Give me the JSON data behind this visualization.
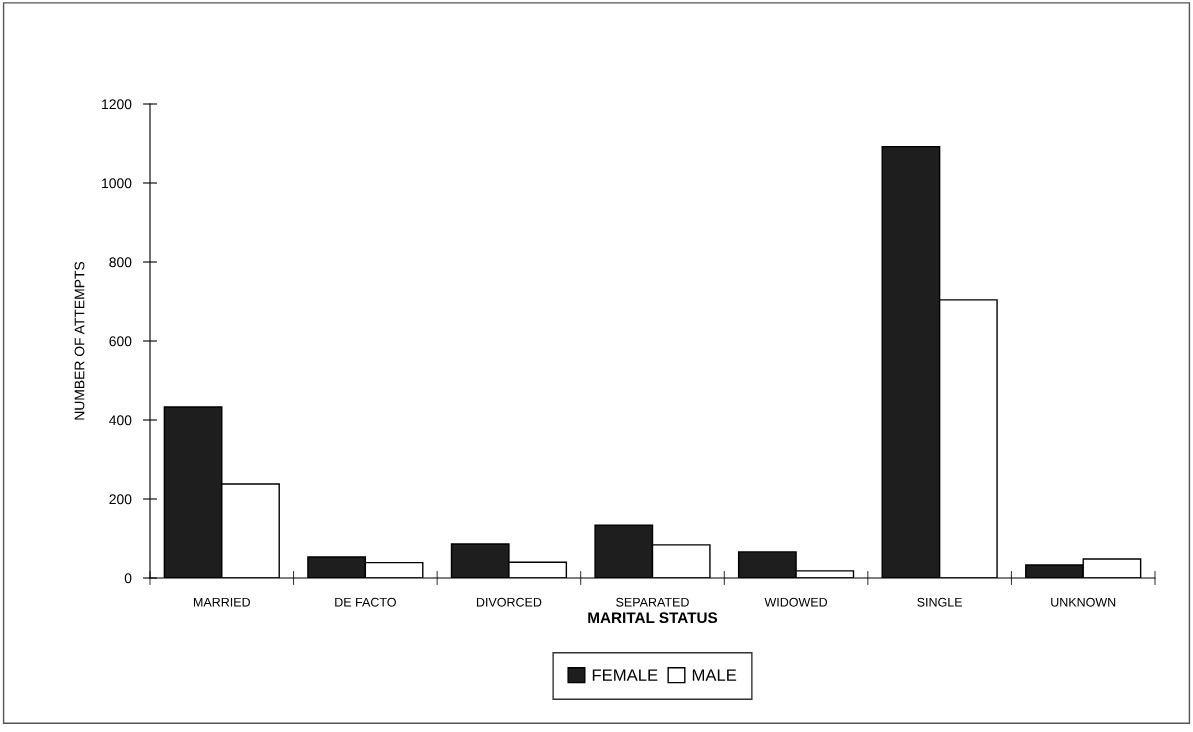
{
  "chart_data": {
    "type": "bar",
    "xlabel": "MARITAL STATUS",
    "ylabel": "NUMBER OF ATTEMPTS",
    "categories": [
      "MARRIED",
      "DE FACTO",
      "DIVORCED",
      "SEPARATED",
      "WIDOWED",
      "SINGLE",
      "UNKNOWN"
    ],
    "series": [
      {
        "name": "FEMALE",
        "color": "#1e1e1e",
        "values": [
          433,
          53,
          86,
          134,
          66,
          1092,
          33
        ]
      },
      {
        "name": "MALE",
        "color": "#ffffff",
        "values": [
          238,
          39,
          40,
          84,
          18,
          704,
          48
        ]
      }
    ],
    "ylim": [
      0,
      1200
    ],
    "yticks": [
      0,
      200,
      400,
      600,
      800,
      1000,
      1200
    ],
    "grid": false,
    "legend": "bottom"
  }
}
